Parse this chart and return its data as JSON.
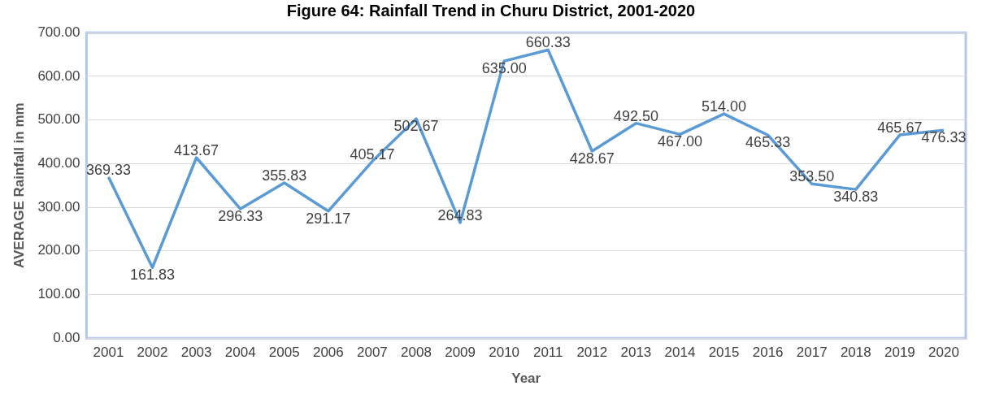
{
  "chart_data": {
    "type": "line",
    "title": "Figure 64: Rainfall Trend in Churu District, 2001-2020",
    "xlabel": "Year",
    "ylabel": "AVERAGE Rainfall in mm",
    "categories": [
      "2001",
      "2002",
      "2003",
      "2004",
      "2005",
      "2006",
      "2007",
      "2008",
      "2009",
      "2010",
      "2011",
      "2012",
      "2013",
      "2014",
      "2015",
      "2016",
      "2017",
      "2018",
      "2019",
      "2020"
    ],
    "values": [
      369.33,
      161.83,
      413.67,
      296.33,
      355.83,
      291.17,
      405.17,
      502.67,
      264.83,
      635.0,
      660.33,
      428.67,
      492.5,
      467.0,
      514.0,
      465.33,
      353.5,
      340.83,
      465.67,
      476.33
    ],
    "value_labels": [
      "369.33",
      "161.83",
      "413.67",
      "296.33",
      "355.83",
      "291.17",
      "405.17",
      "502.67",
      "264.83",
      "635.00",
      "660.33",
      "428.67",
      "492.50",
      "467.00",
      "514.00",
      "465.33",
      "353.50",
      "340.83",
      "465.67",
      "476.33"
    ],
    "color": "#5b9bd5",
    "ylim": [
      0,
      700
    ],
    "yticks": [
      {
        "value": 0,
        "label": "0.00"
      },
      {
        "value": 100,
        "label": "100.00"
      },
      {
        "value": 200,
        "label": "200.00"
      },
      {
        "value": 300,
        "label": "300.00"
      },
      {
        "value": 400,
        "label": "400.00"
      },
      {
        "value": 500,
        "label": "500.00"
      },
      {
        "value": 600,
        "label": "600.00"
      },
      {
        "value": 700,
        "label": "700.00"
      }
    ],
    "grid": "y",
    "legend": false,
    "marker": "none",
    "line_style": "solid"
  }
}
